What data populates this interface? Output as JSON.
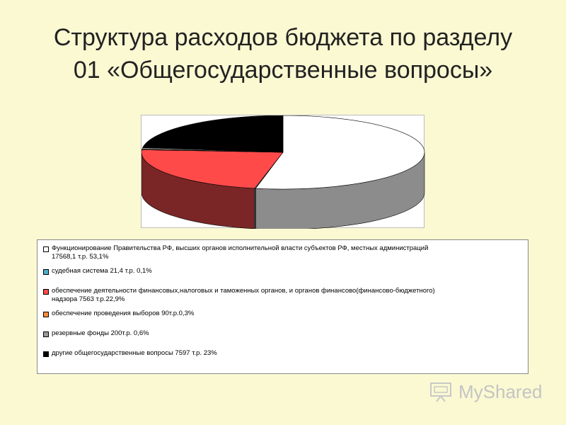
{
  "slide": {
    "title_line1": "Структура расходов бюджета по разделу",
    "title_line2": "01 «Общегосударственные вопросы»"
  },
  "watermark": {
    "text": "MyShared"
  },
  "chart_data": {
    "type": "pie",
    "title": "",
    "legend_position": "bottom",
    "slices": [
      {
        "label_line1": "Функционирование Правительства РФ, высших органов исполнительной власти субъектов РФ, местных администраций",
        "label_line2": "17568,1 т.р. 53,1%",
        "value": 53.1,
        "color": "#ffffff",
        "side_color": "#8c8c8c"
      },
      {
        "label_line1": "судебная система 21,4 т.р. 0,1%",
        "label_line2": "",
        "value": 0.1,
        "color": "#4fb3c6",
        "side_color": "#2f7f8f"
      },
      {
        "label_line1": "обеспечение деятельности финансовых,налоговых и таможенных органов, и органов финансово(финансово-бюджетного)",
        "label_line2": "надзора 7563 т.р.22,9%",
        "value": 22.9,
        "color": "#ff4a4a",
        "side_color": "#7a2626"
      },
      {
        "label_line1": "обеспечение проведения выборов 90т.р.0,3%",
        "label_line2": "",
        "value": 0.3,
        "color": "#ff8c3a",
        "side_color": "#9a4d1a"
      },
      {
        "label_line1": "резервные фонды 200т.р. 0,6%",
        "label_line2": "",
        "value": 0.6,
        "color": "#9a9a9a",
        "side_color": "#5e5e5e"
      },
      {
        "label_line1": "другие общегосударственные вопросы 7597 т.р. 23%",
        "label_line2": "",
        "value": 23.0,
        "color": "#000000",
        "side_color": "#000000"
      }
    ]
  }
}
